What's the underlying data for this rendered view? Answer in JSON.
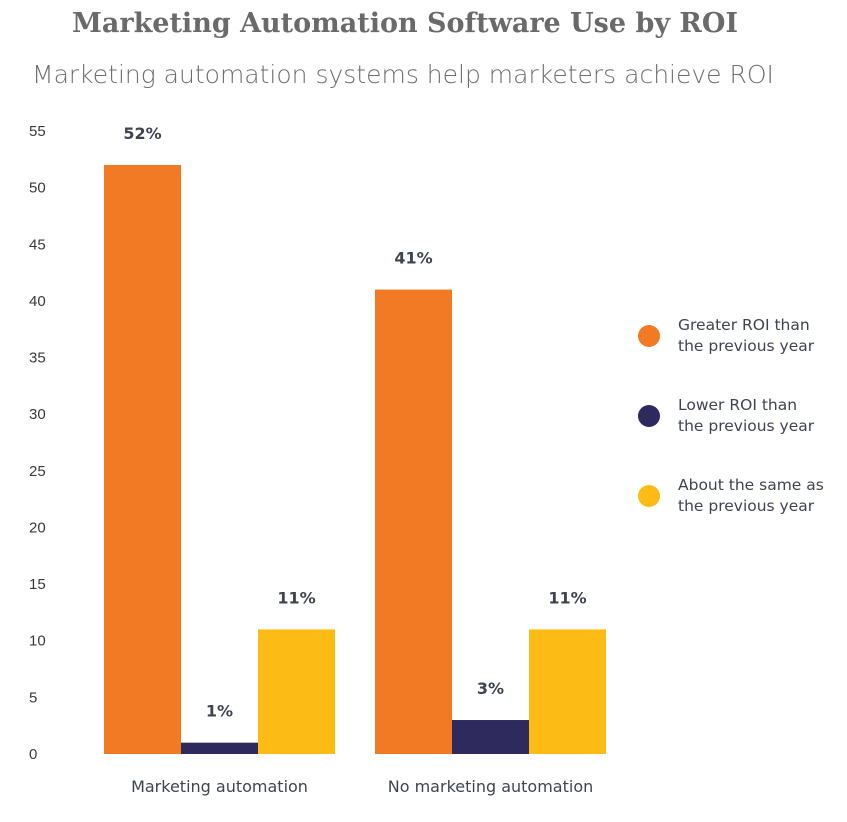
{
  "chart_data": {
    "type": "bar",
    "title": "Marketing Automation Software Use by ROI",
    "subtitle": "Marketing automation systems help marketers achieve ROI",
    "categories": [
      "Marketing automation",
      "No marketing automation"
    ],
    "series": [
      {
        "name": "Greater ROI than the previous year",
        "color": "#F27A24",
        "values": [
          52,
          41
        ],
        "labels": [
          "52%",
          "41%"
        ]
      },
      {
        "name": "Lower ROI than the previous year",
        "color": "#2E2A5E",
        "values": [
          1,
          3
        ],
        "labels": [
          "1%",
          "3%"
        ]
      },
      {
        "name": "About the same as the previous year",
        "color": "#FDBB16",
        "values": [
          11,
          11
        ],
        "labels": [
          "11%",
          "11%"
        ]
      }
    ],
    "ylim": [
      0,
      55
    ],
    "yticks": [
      0,
      5,
      10,
      15,
      20,
      25,
      30,
      35,
      40,
      45,
      50,
      55
    ],
    "grid": false,
    "legend_position": "right"
  },
  "legend": [
    {
      "line1": "Greater ROI than",
      "line2": "the previous year"
    },
    {
      "line1": "Lower ROI than",
      "line2": "the previous year"
    },
    {
      "line1": "About the same as",
      "line2": "the previous year"
    }
  ]
}
